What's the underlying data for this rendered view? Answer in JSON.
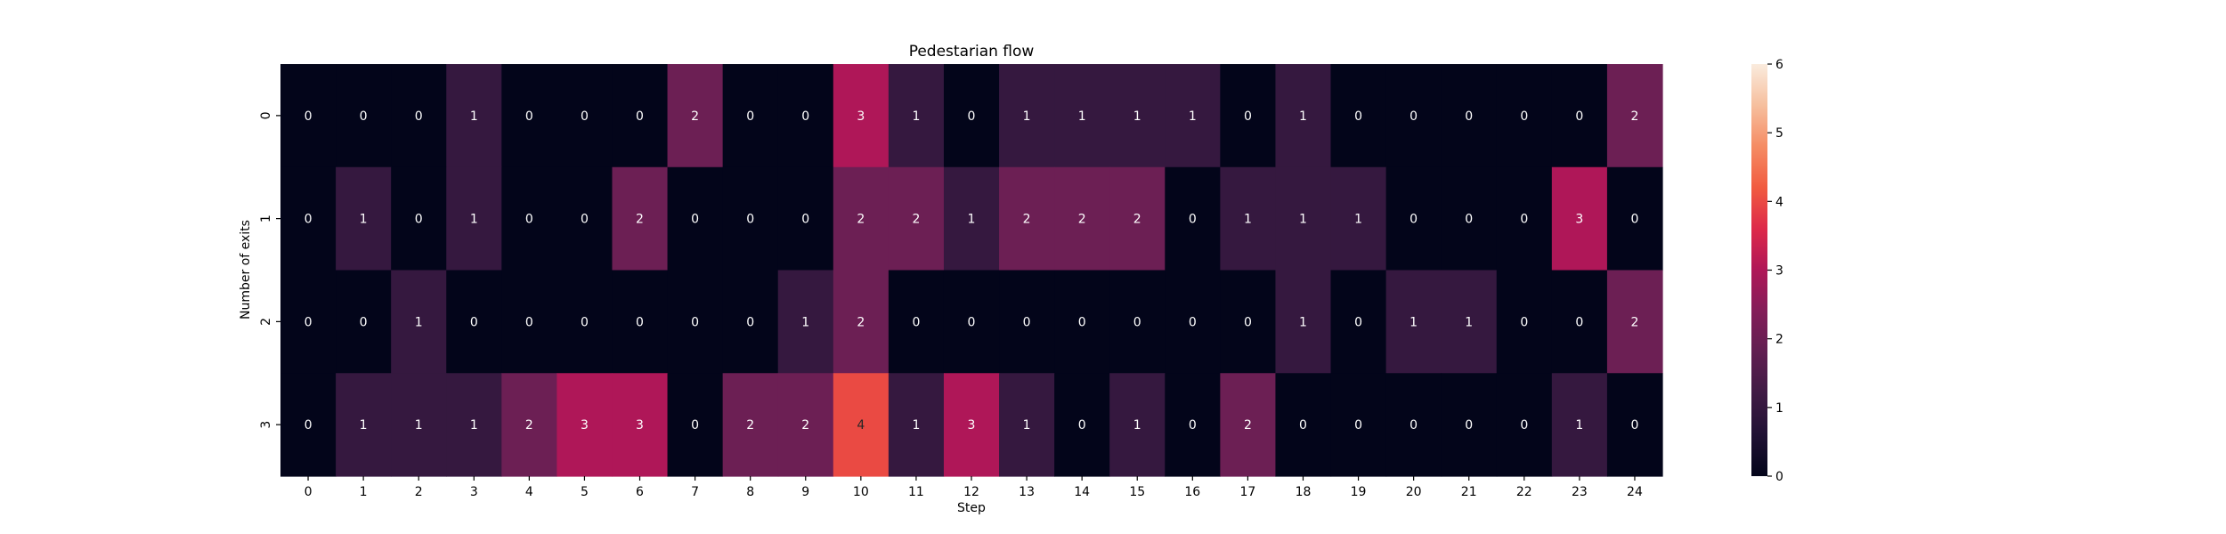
{
  "chart_data": {
    "type": "heatmap",
    "title": "Pedestarian flow",
    "xlabel": "Step",
    "ylabel": "Number of exits",
    "x": [
      "0",
      "1",
      "2",
      "3",
      "4",
      "5",
      "6",
      "7",
      "8",
      "9",
      "10",
      "11",
      "12",
      "13",
      "14",
      "15",
      "16",
      "17",
      "18",
      "19",
      "20",
      "21",
      "22",
      "23",
      "24"
    ],
    "y": [
      "0",
      "1",
      "2",
      "3"
    ],
    "values": [
      [
        0,
        0,
        0,
        1,
        0,
        0,
        0,
        2,
        0,
        0,
        3,
        1,
        0,
        1,
        1,
        1,
        1,
        0,
        1,
        0,
        0,
        0,
        0,
        0,
        2
      ],
      [
        0,
        1,
        0,
        1,
        0,
        0,
        2,
        0,
        0,
        0,
        2,
        2,
        1,
        2,
        2,
        2,
        0,
        1,
        1,
        1,
        0,
        0,
        0,
        3,
        0
      ],
      [
        0,
        0,
        1,
        0,
        0,
        0,
        0,
        0,
        0,
        1,
        2,
        0,
        0,
        0,
        0,
        0,
        0,
        0,
        1,
        0,
        1,
        1,
        0,
        0,
        2
      ],
      [
        0,
        1,
        1,
        1,
        2,
        3,
        3,
        0,
        2,
        2,
        4,
        1,
        3,
        1,
        0,
        1,
        0,
        2,
        0,
        0,
        0,
        0,
        0,
        1,
        0
      ]
    ],
    "colorbar": {
      "min": 0,
      "max": 6,
      "ticks": [
        "0",
        "1",
        "2",
        "3",
        "4",
        "5",
        "6"
      ],
      "colormap": "rocket"
    }
  }
}
